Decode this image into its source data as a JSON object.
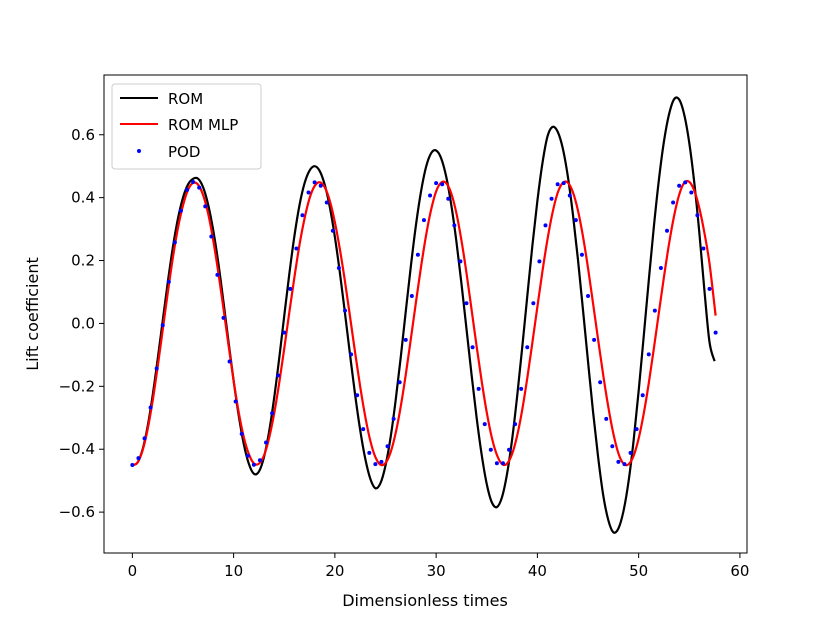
{
  "chart_data": {
    "type": "line",
    "title": "",
    "xlabel": "Dimensionless times",
    "ylabel": "Lift coefficient",
    "xlim": [
      -2.8,
      60.7
    ],
    "ylim": [
      -0.73,
      0.79
    ],
    "xticks": [
      0,
      10,
      20,
      30,
      40,
      50,
      60
    ],
    "xtick_labels": [
      "0",
      "10",
      "20",
      "30",
      "40",
      "50",
      "60"
    ],
    "yticks": [
      -0.6,
      -0.4,
      -0.2,
      0.0,
      0.2,
      0.4,
      0.6
    ],
    "ytick_labels": [
      "−0.6",
      "−0.4",
      "−0.2",
      "0.0",
      "0.2",
      "0.4",
      "0.6"
    ],
    "grid": false,
    "legend_position": "top-left",
    "series": [
      {
        "name": "ROM",
        "style": "line",
        "color": "#000000",
        "x": [
          0.0,
          0.5,
          1.0,
          1.5,
          2.0,
          2.5,
          3.0,
          3.5,
          4.0,
          4.5,
          5.0,
          5.5,
          6.0,
          6.5,
          7.0,
          7.5,
          8.0,
          8.5,
          9.0,
          9.5,
          10.0,
          10.5,
          11.0,
          11.5,
          12.0,
          12.5,
          13.0,
          13.5,
          14.0,
          14.5,
          15.0,
          15.5,
          16.0,
          16.5,
          17.0,
          17.5,
          18.0,
          18.5,
          19.0,
          19.5,
          20.0,
          20.5,
          21.0,
          21.5,
          22.0,
          22.5,
          23.0,
          23.5,
          24.0,
          24.5,
          25.0,
          25.5,
          26.0,
          26.5,
          27.0,
          27.5,
          28.0,
          28.5,
          29.0,
          29.5,
          30.0,
          30.5,
          31.0,
          31.5,
          32.0,
          32.5,
          33.0,
          33.5,
          34.0,
          34.5,
          35.0,
          35.5,
          36.0,
          36.5,
          37.0,
          37.5,
          38.0,
          38.5,
          39.0,
          39.5,
          40.0,
          40.5,
          41.0,
          41.5,
          42.0,
          42.5,
          43.0,
          43.5,
          44.0,
          44.5,
          45.0,
          45.5,
          46.0,
          46.5,
          47.0,
          47.5,
          48.0,
          48.5,
          49.0,
          49.5,
          50.0,
          50.5,
          51.0,
          51.5,
          52.0,
          52.5,
          53.0,
          53.5,
          54.0,
          54.5,
          55.0,
          55.5,
          56.0,
          56.5,
          57.0,
          57.5
        ],
        "y": [
          -0.45,
          -0.443,
          -0.402,
          -0.329,
          -0.23,
          -0.114,
          0.009,
          0.131,
          0.242,
          0.333,
          0.4,
          0.442,
          0.46,
          0.46,
          0.432,
          0.376,
          0.294,
          0.19,
          0.068,
          -0.059,
          -0.182,
          -0.292,
          -0.383,
          -0.446,
          -0.478,
          -0.471,
          -0.425,
          -0.345,
          -0.238,
          -0.112,
          0.024,
          0.157,
          0.277,
          0.375,
          0.445,
          0.486,
          0.5,
          0.485,
          0.441,
          0.37,
          0.275,
          0.16,
          0.032,
          -0.1,
          -0.227,
          -0.339,
          -0.43,
          -0.494,
          -0.524,
          -0.508,
          -0.452,
          -0.363,
          -0.245,
          -0.109,
          0.038,
          0.181,
          0.311,
          0.418,
          0.497,
          0.541,
          0.55,
          0.525,
          0.466,
          0.376,
          0.261,
          0.127,
          -0.018,
          -0.163,
          -0.3,
          -0.418,
          -0.511,
          -0.569,
          -0.584,
          -0.553,
          -0.479,
          -0.37,
          -0.232,
          -0.077,
          0.086,
          0.246,
          0.39,
          0.51,
          0.595,
          0.625,
          0.61,
          0.558,
          0.469,
          0.349,
          0.205,
          0.044,
          -0.121,
          -0.282,
          -0.426,
          -0.546,
          -0.625,
          -0.664,
          -0.652,
          -0.597,
          -0.503,
          -0.373,
          -0.215,
          -0.041,
          0.137,
          0.307,
          0.457,
          0.579,
          0.665,
          0.713,
          0.712,
          0.664,
          0.574,
          0.446,
          0.286,
          0.103,
          -0.06,
          -0.12
        ]
      },
      {
        "name": "ROM MLP",
        "style": "line",
        "color": "#ff0000",
        "x": [
          0.0,
          0.5,
          1.0,
          1.5,
          2.0,
          2.5,
          3.0,
          3.5,
          4.0,
          4.5,
          5.0,
          5.5,
          6.0,
          6.5,
          7.0,
          7.5,
          8.0,
          8.5,
          9.0,
          9.5,
          10.0,
          10.5,
          11.0,
          11.5,
          12.0,
          12.5,
          13.0,
          13.5,
          14.0,
          14.5,
          15.0,
          15.5,
          16.0,
          16.5,
          17.0,
          17.5,
          18.0,
          18.5,
          19.0,
          19.5,
          20.0,
          20.5,
          21.0,
          21.5,
          22.0,
          22.5,
          23.0,
          23.5,
          24.0,
          24.5,
          25.0,
          25.5,
          26.0,
          26.5,
          27.0,
          27.5,
          28.0,
          28.5,
          29.0,
          29.5,
          30.0,
          30.5,
          31.0,
          31.5,
          32.0,
          32.5,
          33.0,
          33.5,
          34.0,
          34.5,
          35.0,
          35.5,
          36.0,
          36.5,
          37.0,
          37.5,
          38.0,
          38.5,
          39.0,
          39.5,
          40.0,
          40.5,
          41.0,
          41.5,
          42.0,
          42.5,
          43.0,
          43.5,
          44.0,
          44.5,
          45.0,
          45.5,
          46.0,
          46.5,
          47.0,
          47.5,
          48.0,
          48.5,
          49.0,
          49.5,
          50.0,
          50.5,
          51.0,
          51.5,
          52.0,
          52.5,
          53.0,
          53.5,
          54.0,
          54.5,
          55.0,
          55.5,
          56.0,
          56.5,
          57.0,
          57.6
        ],
        "y": [
          -0.45,
          -0.443,
          -0.405,
          -0.338,
          -0.247,
          -0.138,
          -0.02,
          0.098,
          0.209,
          0.303,
          0.375,
          0.425,
          0.447,
          0.441,
          0.407,
          0.347,
          0.262,
          0.16,
          0.047,
          -0.07,
          -0.182,
          -0.282,
          -0.361,
          -0.415,
          -0.445,
          -0.446,
          -0.42,
          -0.365,
          -0.287,
          -0.19,
          -0.08,
          0.035,
          0.146,
          0.249,
          0.333,
          0.398,
          0.437,
          0.449,
          0.433,
          0.39,
          0.322,
          0.235,
          0.133,
          0.021,
          -0.093,
          -0.201,
          -0.296,
          -0.373,
          -0.425,
          -0.449,
          -0.444,
          -0.41,
          -0.349,
          -0.265,
          -0.163,
          -0.05,
          0.066,
          0.178,
          0.279,
          0.361,
          0.42,
          0.448,
          0.446,
          0.413,
          0.351,
          0.264,
          0.16,
          0.044,
          -0.073,
          -0.184,
          -0.283,
          -0.363,
          -0.418,
          -0.447,
          -0.446,
          -0.415,
          -0.357,
          -0.275,
          -0.174,
          -0.062,
          0.053,
          0.166,
          0.268,
          0.353,
          0.415,
          0.447,
          0.448,
          0.418,
          0.36,
          0.277,
          0.176,
          0.063,
          -0.052,
          -0.164,
          -0.265,
          -0.35,
          -0.413,
          -0.446,
          -0.448,
          -0.421,
          -0.366,
          -0.287,
          -0.19,
          -0.08,
          0.035,
          0.148,
          0.253,
          0.342,
          0.409,
          0.447,
          0.45,
          0.422,
          0.366,
          0.287,
          0.19,
          0.025
        ]
      },
      {
        "name": "POD",
        "style": "markers",
        "color": "#0000ff",
        "x_start": 0.0,
        "x_step": 0.6,
        "x_end": 57.6,
        "amplitude": 0.45,
        "period": 12.1,
        "phase_note": "y = -0.45*cos(2*pi*t/12.1)"
      }
    ]
  }
}
